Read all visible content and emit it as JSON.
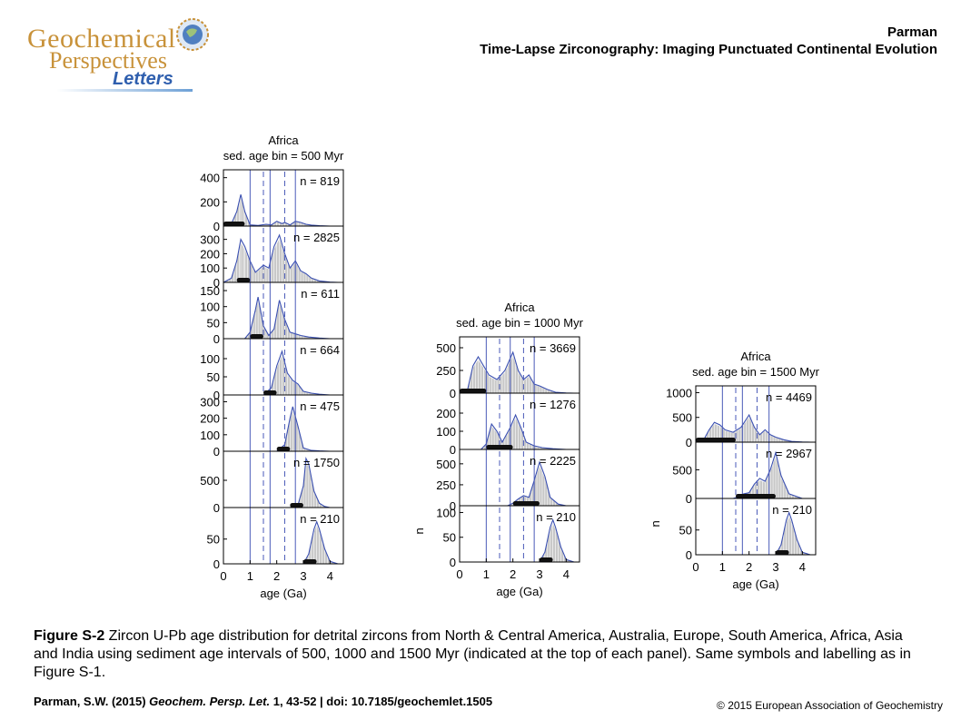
{
  "logo": {
    "line1": "Geochemical",
    "line2": "Perspectives",
    "line3": "Letters"
  },
  "header": {
    "author": "Parman",
    "title": "Time-Lapse Zirconography: Imaging Punctuated Continental Evolution"
  },
  "caption": {
    "label": "Figure S-2",
    "text": " Zircon U-Pb age distribution for detrital zircons from North & Central America, Australia, Europe, South America, Africa, Asia and India using sediment age intervals of 500, 1000 and 1500 Myr (indicated at the top of each panel). Same symbols and labelling as in Figure S-1."
  },
  "citation": {
    "author": "Parman, S.W. (2015) ",
    "journal": "Geochem. Persp. Let.",
    "rest": " 1, 43-52 | doi: 10.7185/geochemlet.1505"
  },
  "copyright": "© 2015 European Association of Geochemistry",
  "chart_data": [
    {
      "type": "area",
      "title": "Africa",
      "subtitle": "sed. age bin = 500 Myr",
      "xlabel": "age (Ga)",
      "ylabel": "",
      "xlim": [
        0,
        4.5
      ],
      "xticks": [
        "0",
        "1",
        "2",
        "3",
        "4"
      ],
      "solid_lines": [
        1.0,
        1.75,
        2.7
      ],
      "dashed_lines": [
        1.5,
        2.3
      ],
      "panels": [
        {
          "n": "n = 819",
          "ymax": 450,
          "yticks": [
            0,
            200,
            400
          ],
          "x": [
            0,
            0.3,
            0.5,
            0.65,
            0.8,
            1.0,
            1.3,
            1.6,
            1.8,
            2.0,
            2.2,
            2.3,
            2.5,
            2.7,
            2.9,
            3.1,
            3.3,
            3.6,
            4.0,
            4.3
          ],
          "y": [
            0,
            20,
            120,
            260,
            120,
            10,
            5,
            15,
            10,
            40,
            20,
            30,
            10,
            40,
            30,
            15,
            8,
            3,
            0,
            0
          ],
          "bar_range": [
            0,
            0.8
          ]
        },
        {
          "n": "n = 2825",
          "ymax": 380,
          "yticks": [
            0,
            100,
            200,
            300
          ],
          "x": [
            0,
            0.3,
            0.5,
            0.65,
            0.8,
            1.0,
            1.2,
            1.5,
            1.7,
            1.9,
            2.1,
            2.3,
            2.5,
            2.7,
            2.9,
            3.1,
            3.3,
            3.6,
            4.0,
            4.3
          ],
          "y": [
            0,
            30,
            150,
            300,
            250,
            150,
            70,
            120,
            100,
            250,
            330,
            200,
            100,
            150,
            80,
            60,
            30,
            10,
            2,
            0
          ],
          "bar_range": [
            0.5,
            1.0
          ]
        },
        {
          "n": "n = 611",
          "ymax": 170,
          "yticks": [
            0,
            50,
            100,
            150
          ],
          "x": [
            0,
            0.8,
            1.0,
            1.2,
            1.3,
            1.5,
            1.7,
            1.9,
            2.1,
            2.3,
            2.5,
            2.7,
            2.9,
            3.2,
            3.6,
            4.0,
            4.3
          ],
          "y": [
            0,
            0,
            20,
            90,
            130,
            40,
            10,
            30,
            120,
            60,
            20,
            15,
            10,
            5,
            2,
            0,
            0
          ],
          "bar_range": [
            1.0,
            1.5
          ]
        },
        {
          "n": "n = 664",
          "ymax": 150,
          "yticks": [
            0,
            50,
            100
          ],
          "x": [
            0,
            1.5,
            1.8,
            2.0,
            2.2,
            2.4,
            2.6,
            2.8,
            3.0,
            3.3,
            3.6,
            4.0,
            4.3
          ],
          "y": [
            0,
            0,
            20,
            80,
            120,
            60,
            40,
            30,
            10,
            5,
            2,
            0,
            0
          ],
          "bar_range": [
            1.5,
            2.0
          ]
        },
        {
          "n": "n = 475",
          "ymax": 330,
          "yticks": [
            0,
            100,
            200,
            300
          ],
          "x": [
            0,
            2.0,
            2.3,
            2.5,
            2.6,
            2.8,
            3.0,
            3.3,
            3.6,
            4.0,
            4.3
          ],
          "y": [
            0,
            0,
            40,
            200,
            270,
            150,
            20,
            5,
            2,
            0,
            0
          ],
          "bar_range": [
            2.0,
            2.5
          ]
        },
        {
          "n": "n = 1750",
          "ymax": 1000,
          "yticks": [
            0,
            500
          ],
          "x": [
            0,
            2.5,
            2.8,
            3.0,
            3.1,
            3.2,
            3.4,
            3.6,
            3.8,
            4.0,
            4.3
          ],
          "y": [
            0,
            0,
            50,
            400,
            900,
            800,
            300,
            80,
            20,
            0,
            0
          ],
          "bar_range": [
            2.5,
            3.0
          ]
        },
        {
          "n": "n = 210",
          "ymax": 110,
          "yticks": [
            0,
            50
          ],
          "x": [
            0,
            3.0,
            3.2,
            3.4,
            3.5,
            3.6,
            3.8,
            4.0,
            4.3
          ],
          "y": [
            0,
            0,
            20,
            70,
            85,
            70,
            30,
            5,
            0
          ],
          "bar_range": [
            3.0,
            3.5
          ]
        }
      ]
    },
    {
      "type": "area",
      "title": "Africa",
      "subtitle": "sed. age bin = 1000 Myr",
      "xlabel": "age (Ga)",
      "ylabel": "n",
      "xlim": [
        0,
        4.5
      ],
      "xticks": [
        "0",
        "1",
        "2",
        "3",
        "4"
      ],
      "solid_lines": [
        1.0,
        1.9,
        2.8
      ],
      "dashed_lines": [
        1.5,
        2.4
      ],
      "panels": [
        {
          "n": "n = 3669",
          "ymax": 600,
          "yticks": [
            0,
            250,
            500
          ],
          "x": [
            0,
            0.3,
            0.5,
            0.7,
            0.9,
            1.1,
            1.4,
            1.7,
            2.0,
            2.2,
            2.4,
            2.6,
            2.8,
            3.0,
            3.3,
            3.6,
            4.0,
            4.3
          ],
          "y": [
            0,
            40,
            300,
            400,
            300,
            200,
            150,
            250,
            450,
            250,
            150,
            200,
            100,
            80,
            40,
            10,
            2,
            0
          ],
          "bar_range": [
            0,
            1.0
          ]
        },
        {
          "n": "n = 1276",
          "ymax": 300,
          "yticks": [
            0,
            100,
            200
          ],
          "x": [
            0,
            0.8,
            1.0,
            1.2,
            1.4,
            1.6,
            1.9,
            2.1,
            2.3,
            2.5,
            2.8,
            3.1,
            3.5,
            4.0,
            4.3
          ],
          "y": [
            0,
            0,
            30,
            140,
            100,
            40,
            120,
            190,
            120,
            40,
            20,
            10,
            4,
            0,
            0
          ],
          "bar_range": [
            1.0,
            2.0
          ]
        },
        {
          "n": "n = 2225",
          "ymax": 650,
          "yticks": [
            0,
            250,
            500
          ],
          "x": [
            0,
            1.8,
            2.0,
            2.2,
            2.4,
            2.6,
            2.8,
            3.0,
            3.2,
            3.4,
            3.7,
            4.0,
            4.3
          ],
          "y": [
            0,
            0,
            30,
            80,
            120,
            100,
            300,
            520,
            350,
            100,
            20,
            0,
            0
          ],
          "bar_range": [
            2.0,
            3.0
          ]
        },
        {
          "n": "n = 210",
          "ymax": 110,
          "yticks": [
            0,
            50,
            100
          ],
          "x": [
            0,
            3.0,
            3.2,
            3.4,
            3.5,
            3.6,
            3.8,
            4.0,
            4.3
          ],
          "y": [
            0,
            0,
            20,
            70,
            85,
            70,
            30,
            5,
            0
          ],
          "bar_range": [
            3.0,
            3.5
          ]
        }
      ]
    },
    {
      "type": "area",
      "title": "Africa",
      "subtitle": "sed. age bin = 1500 Myr",
      "xlabel": "age (Ga)",
      "ylabel": "n",
      "xlim": [
        0,
        4.5
      ],
      "xticks": [
        "0",
        "1",
        "2",
        "3",
        "4"
      ],
      "solid_lines": [
        1.0,
        1.75,
        2.75
      ],
      "dashed_lines": [
        1.5,
        2.3
      ],
      "panels": [
        {
          "n": "n = 4469",
          "ymax": 1100,
          "yticks": [
            0,
            500,
            1000
          ],
          "x": [
            0,
            0.3,
            0.5,
            0.7,
            0.9,
            1.1,
            1.4,
            1.7,
            2.0,
            2.2,
            2.4,
            2.6,
            2.8,
            3.0,
            3.3,
            3.6,
            4.0,
            4.3
          ],
          "y": [
            0,
            50,
            250,
            400,
            350,
            250,
            200,
            300,
            550,
            300,
            150,
            250,
            150,
            100,
            50,
            15,
            3,
            0
          ],
          "bar_range": [
            0,
            1.5
          ]
        },
        {
          "n": "n = 2967",
          "ymax": 950,
          "yticks": [
            0,
            500
          ],
          "x": [
            0,
            1.4,
            1.6,
            1.8,
            2.0,
            2.2,
            2.4,
            2.6,
            2.8,
            3.0,
            3.2,
            3.5,
            4.0,
            4.3
          ],
          "y": [
            0,
            0,
            30,
            80,
            100,
            250,
            350,
            300,
            500,
            800,
            400,
            80,
            0,
            0
          ],
          "bar_range": [
            1.5,
            3.0
          ]
        },
        {
          "n": "n = 210",
          "ymax": 110,
          "yticks": [
            0,
            50
          ],
          "x": [
            0,
            3.0,
            3.2,
            3.4,
            3.5,
            3.6,
            3.8,
            4.0,
            4.3
          ],
          "y": [
            0,
            0,
            20,
            70,
            85,
            70,
            30,
            5,
            0
          ],
          "bar_range": [
            3.0,
            3.5
          ]
        }
      ]
    }
  ]
}
